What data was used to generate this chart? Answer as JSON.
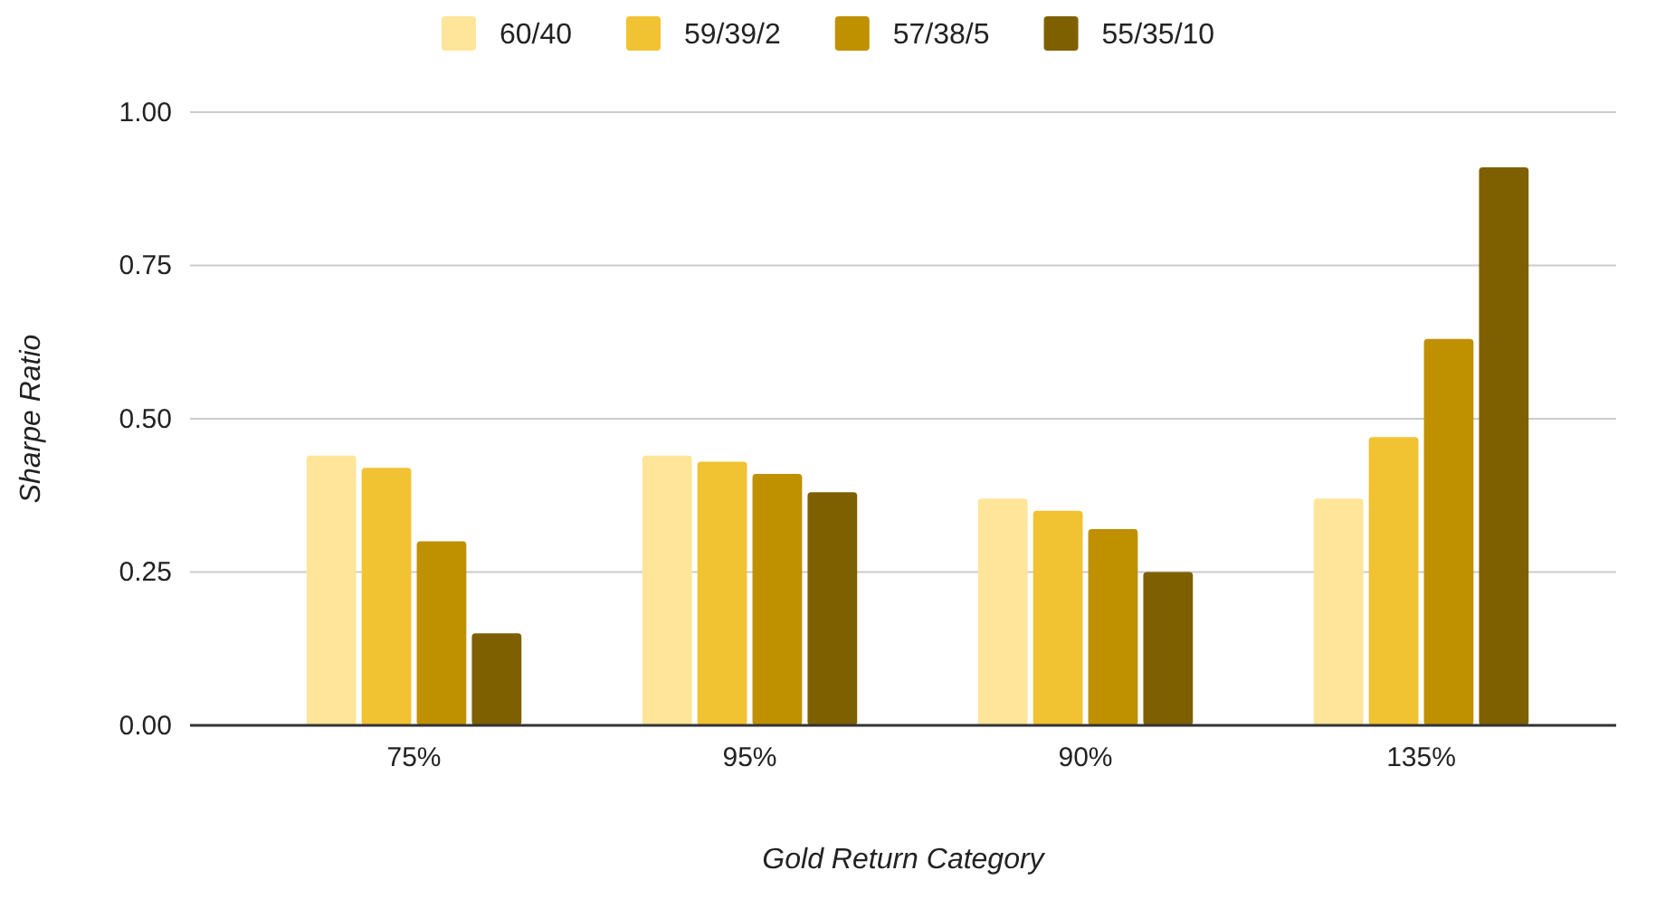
{
  "chart_data": {
    "type": "bar",
    "xlabel": "Gold Return Category",
    "ylabel": "Sharpe Ratio",
    "categories": [
      "75%",
      "95%",
      "90%",
      "135%"
    ],
    "series": [
      {
        "name": "60/40",
        "color": "#ffe599",
        "values": [
          0.44,
          0.44,
          0.37,
          0.37
        ]
      },
      {
        "name": "59/39/2",
        "color": "#f1c232",
        "values": [
          0.42,
          0.43,
          0.35,
          0.47
        ]
      },
      {
        "name": "57/38/5",
        "color": "#bf9000",
        "values": [
          0.3,
          0.41,
          0.32,
          0.63
        ]
      },
      {
        "name": "55/35/10",
        "color": "#7f6000",
        "values": [
          0.15,
          0.38,
          0.25,
          0.91
        ]
      }
    ],
    "ylim": [
      0,
      1
    ],
    "yticks": [
      {
        "value": 0,
        "label": "0.00"
      },
      {
        "value": 0.25,
        "label": "0.25"
      },
      {
        "value": 0.5,
        "label": "0.50"
      },
      {
        "value": 0.75,
        "label": "0.75"
      },
      {
        "value": 1,
        "label": "1.00"
      }
    ],
    "grid": "y",
    "legend": "top"
  }
}
